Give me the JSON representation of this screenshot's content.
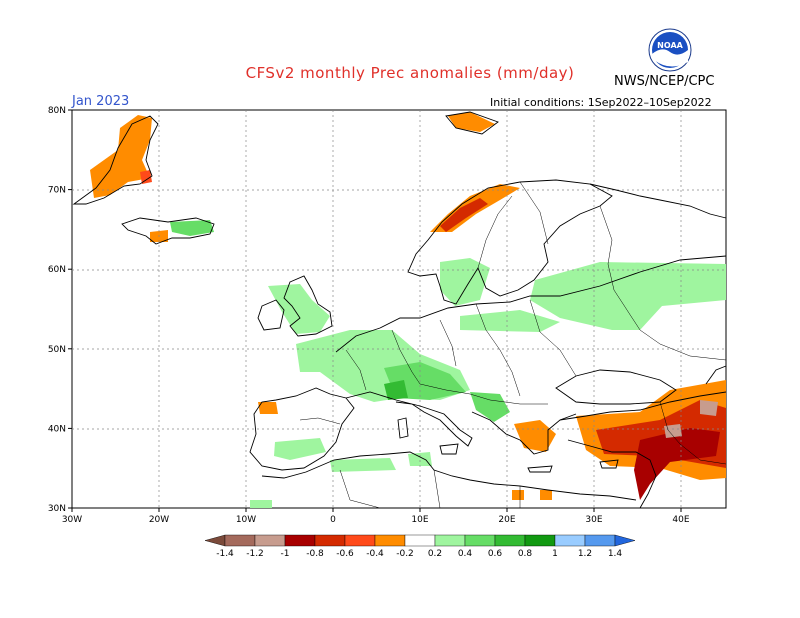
{
  "header": {
    "title": "CFSv2 monthly Prec anomalies (mm/day)",
    "month": "Jan 2023",
    "initial_conditions": "Initial conditions: 1Sep2022–10Sep2022",
    "agency": "NWS/NCEP/CPC",
    "logo_text": "NOAA"
  },
  "map": {
    "lon_range": [
      -30,
      45
    ],
    "lat_range": [
      30,
      80
    ],
    "x_ticks": [
      "30W",
      "20W",
      "10W",
      "0",
      "10E",
      "20E",
      "30E",
      "40E"
    ],
    "y_ticks": [
      "30N",
      "40N",
      "50N",
      "60N",
      "70N",
      "80N"
    ]
  },
  "colorbar": {
    "labels": [
      "-1.4",
      "-1.2",
      "-1",
      "-0.8",
      "-0.6",
      "-0.4",
      "-0.2",
      "0.2",
      "0.4",
      "0.6",
      "0.8",
      "1",
      "1.2",
      "1.4"
    ],
    "colors": [
      "#7b4a3a",
      "#a46a5c",
      "#c79c8e",
      "#a80000",
      "#d42a00",
      "#ff4a1a",
      "#ff8c00",
      "#ffffff",
      "#9ff59f",
      "#66dd66",
      "#33bb33",
      "#119911",
      "#99ccff",
      "#5599ee",
      "#2266dd"
    ]
  },
  "colors": {
    "coast": "#000000",
    "grid": "#888888",
    "title": "#e0302a",
    "month": "#3355cc"
  }
}
